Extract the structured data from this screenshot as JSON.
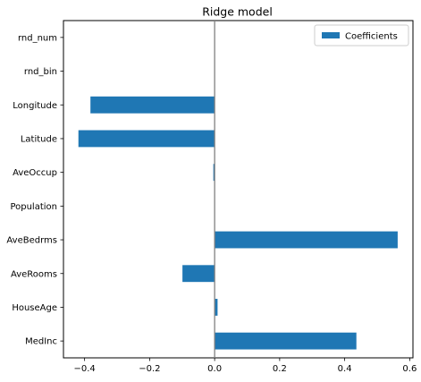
{
  "chart_data": {
    "type": "bar",
    "orientation": "horizontal",
    "title": "Ridge model",
    "xlabel": "",
    "ylabel": "",
    "categories": [
      "MedInc",
      "HouseAge",
      "AveRooms",
      "AveBedrms",
      "Population",
      "AveOccup",
      "Latitude",
      "Longitude",
      "rnd_bin",
      "rnd_num"
    ],
    "series": [
      {
        "name": "Coefficients",
        "color": "#1f77b4",
        "values": [
          0.436,
          0.009,
          -0.099,
          0.563,
          0.0,
          -0.004,
          -0.419,
          -0.382,
          0.0,
          0.0
        ]
      }
    ],
    "xlim": [
      -0.465,
      0.61
    ],
    "xticks": [
      -0.4,
      -0.2,
      0.0,
      0.2,
      0.4,
      0.6
    ],
    "xtick_labels": [
      "−0.4",
      "−0.2",
      "0.0",
      "0.2",
      "0.4",
      "0.6"
    ],
    "zero_line": true,
    "zero_line_color": "#808080",
    "grid": false,
    "legend_position": "top-right"
  }
}
